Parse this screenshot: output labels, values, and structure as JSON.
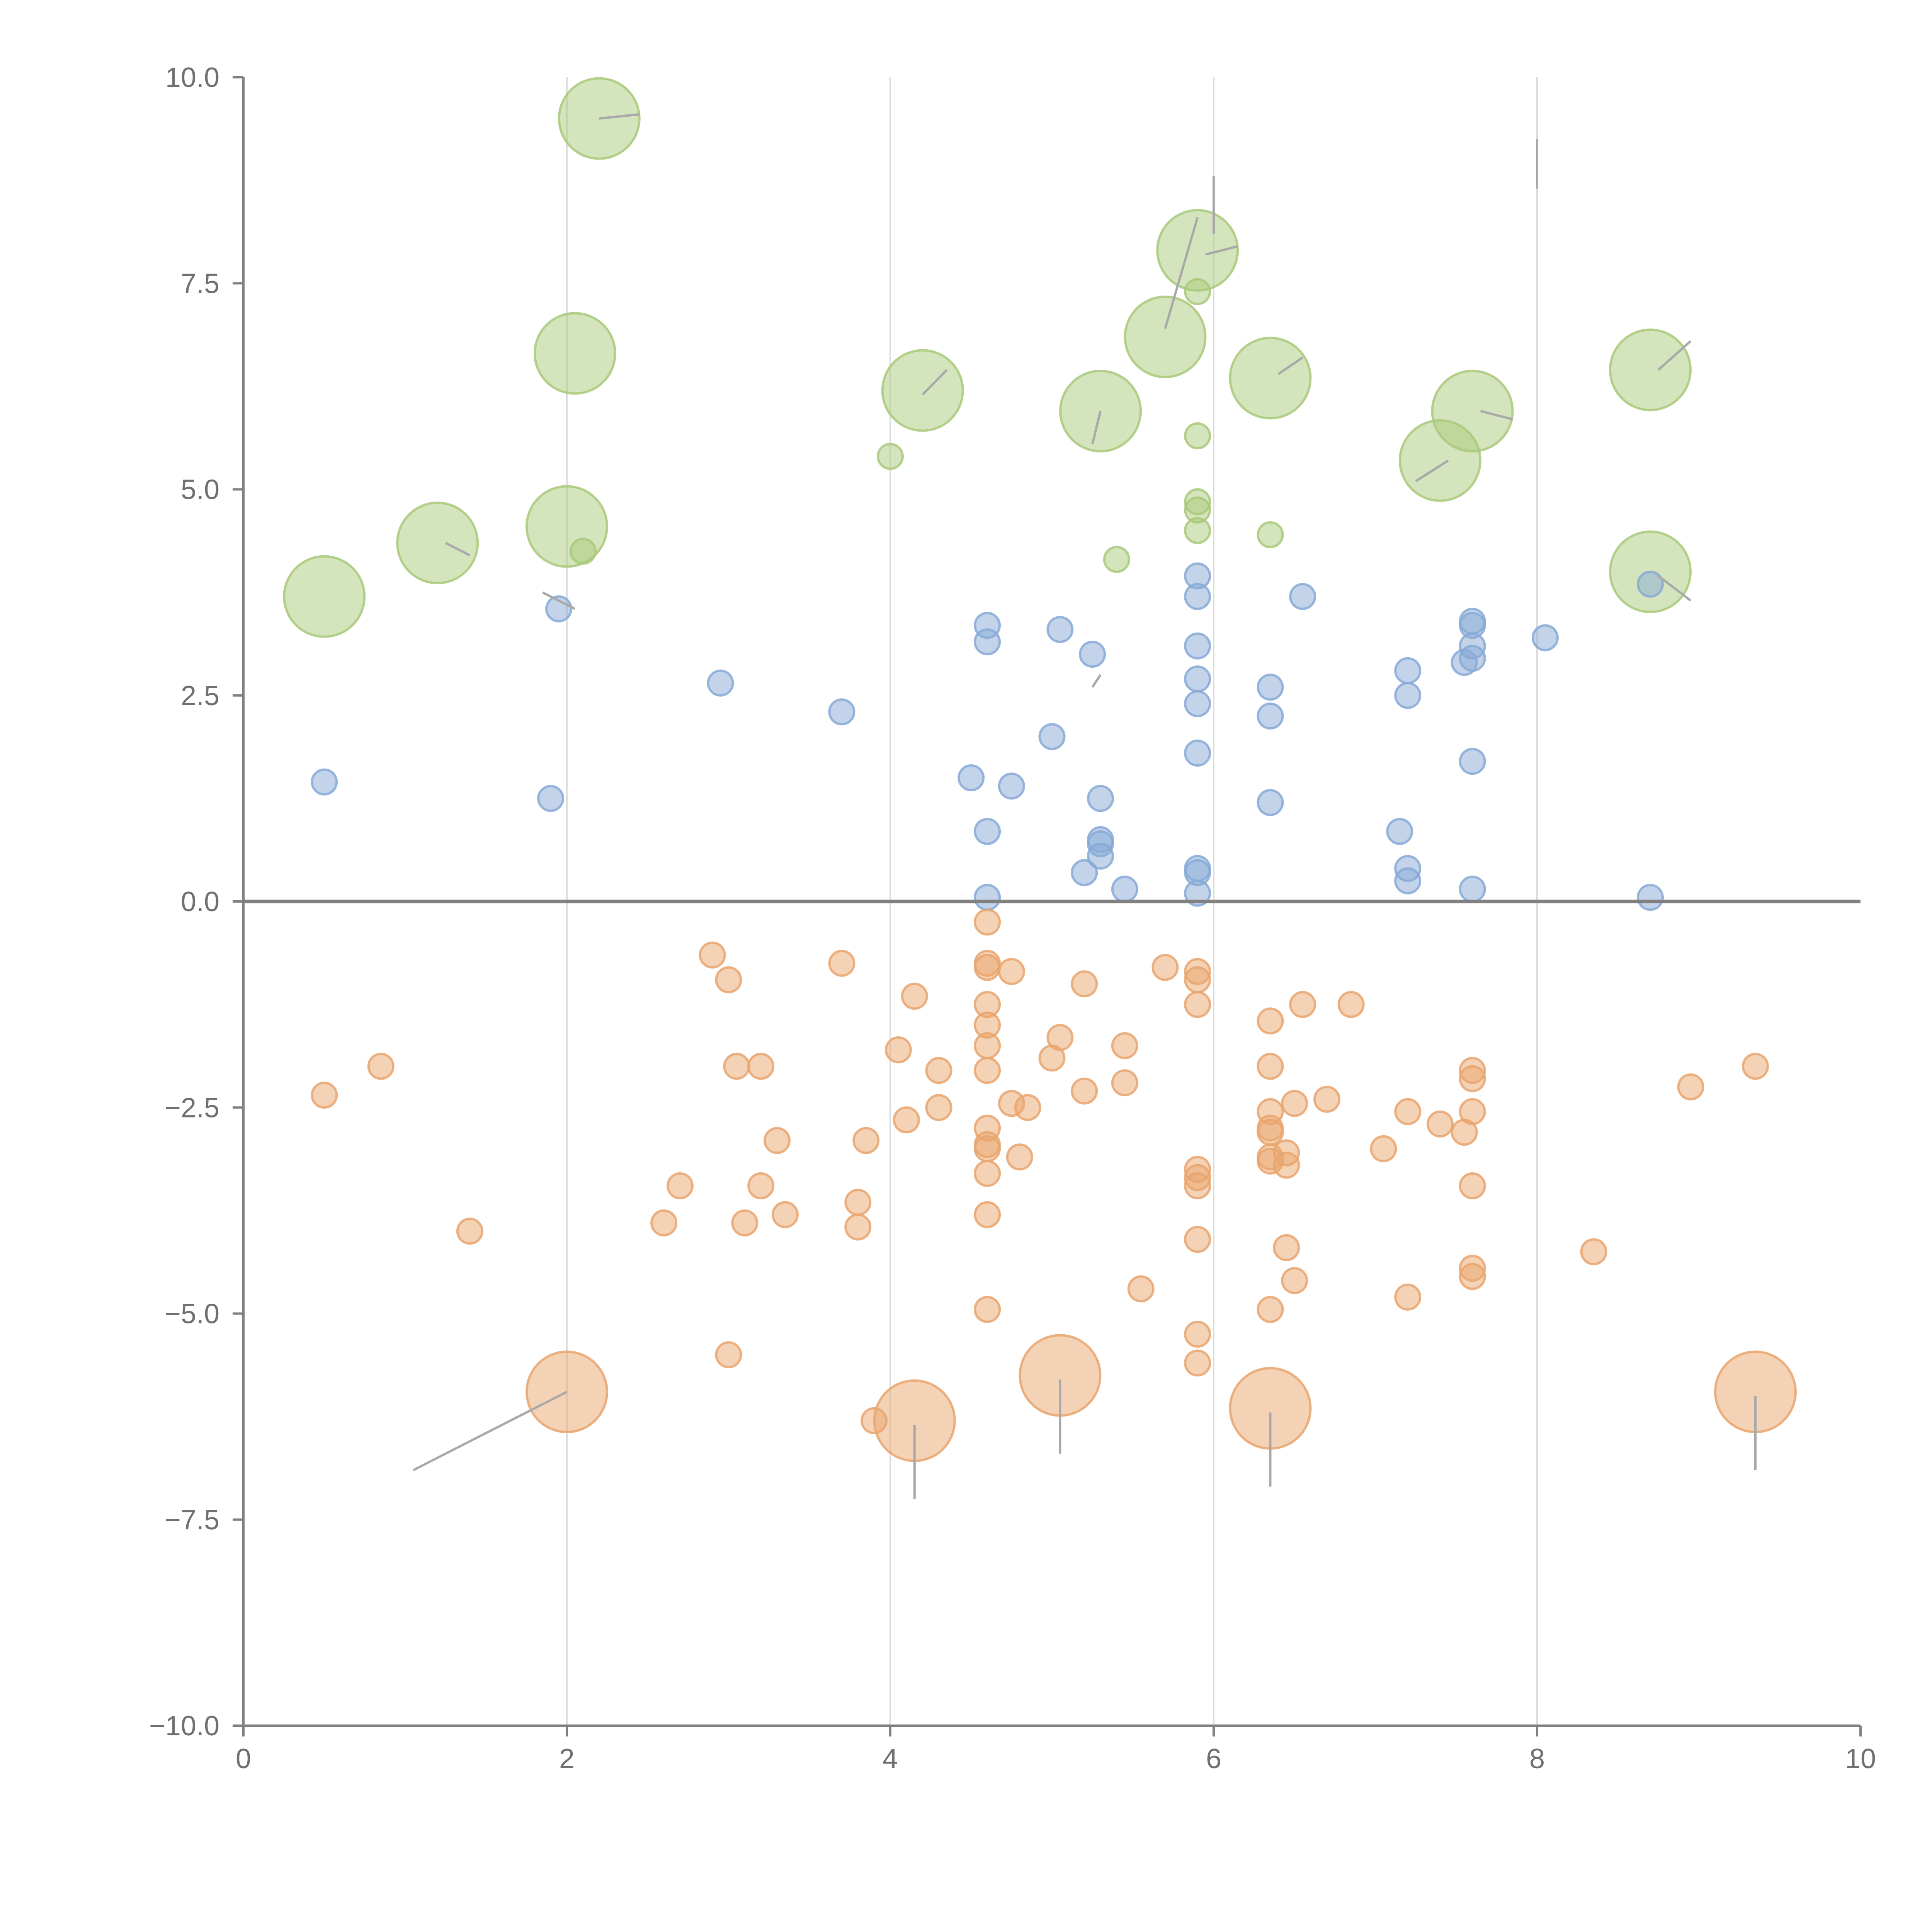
{
  "chart_data": {
    "type": "scatter",
    "title": "",
    "xlabel": "",
    "ylabel": "",
    "xlim": [
      0,
      10
    ],
    "ylim": [
      -10,
      10
    ],
    "x_ticks": [
      "0",
      "2",
      "4",
      "6",
      "8",
      "10"
    ],
    "y_ticks": [
      "−10.0",
      "−7.5",
      "−5.0",
      "−2.5",
      "0.0",
      "2.5",
      "5.0",
      "7.5",
      "10.0"
    ],
    "x_ticks_values": [
      0,
      2,
      4,
      6,
      8,
      10
    ],
    "y_ticks_values": [
      -10,
      -7.5,
      -5,
      -2.5,
      0,
      2.5,
      5,
      7.5,
      10
    ],
    "vertical_gridlines_at": [
      2,
      4,
      6,
      8
    ],
    "zero_line": true,
    "legend": "none",
    "series": [
      {
        "name": "green",
        "color": "#a9c97a",
        "points": [
          [
            2.2,
            9.5,
            3
          ],
          [
            2.05,
            6.65,
            3
          ],
          [
            1.2,
            4.35,
            3
          ],
          [
            2.0,
            4.55,
            3
          ],
          [
            0.5,
            3.7,
            3
          ],
          [
            2.1,
            4.25,
            1
          ],
          [
            4.0,
            5.4,
            1
          ],
          [
            4.2,
            6.2,
            3
          ],
          [
            5.3,
            5.95,
            3
          ],
          [
            5.7,
            6.85,
            3
          ],
          [
            5.9,
            7.9,
            3
          ],
          [
            5.9,
            7.4,
            1
          ],
          [
            5.9,
            5.65,
            1
          ],
          [
            5.9,
            4.85,
            1
          ],
          [
            5.9,
            4.75,
            1
          ],
          [
            5.9,
            4.5,
            1
          ],
          [
            5.4,
            4.15,
            1
          ],
          [
            6.35,
            6.35,
            3
          ],
          [
            6.35,
            4.45,
            1
          ],
          [
            7.4,
            5.35,
            3
          ],
          [
            7.6,
            5.95,
            3
          ],
          [
            8.7,
            6.45,
            3
          ],
          [
            8.7,
            4.0,
            3
          ]
        ]
      },
      {
        "name": "blue",
        "color": "#87a9d6",
        "points": [
          [
            0.5,
            1.45,
            1
          ],
          [
            1.9,
            1.25,
            1
          ],
          [
            1.95,
            3.55,
            1
          ],
          [
            2.95,
            2.65,
            1
          ],
          [
            3.7,
            2.3,
            1
          ],
          [
            4.5,
            1.5,
            1
          ],
          [
            4.6,
            3.35,
            1
          ],
          [
            4.6,
            3.15,
            1
          ],
          [
            4.6,
            0.85,
            1
          ],
          [
            4.6,
            0.05,
            1
          ],
          [
            4.75,
            1.4,
            1
          ],
          [
            5.0,
            2.0,
            1
          ],
          [
            5.05,
            3.3,
            1
          ],
          [
            5.25,
            3.0,
            1
          ],
          [
            5.3,
            1.25,
            1
          ],
          [
            5.3,
            0.75,
            1
          ],
          [
            5.3,
            0.7,
            1
          ],
          [
            5.3,
            0.55,
            1
          ],
          [
            5.2,
            0.35,
            1
          ],
          [
            5.45,
            0.15,
            1
          ],
          [
            5.9,
            3.95,
            1
          ],
          [
            5.9,
            3.7,
            1
          ],
          [
            5.9,
            3.1,
            1
          ],
          [
            5.9,
            2.7,
            1
          ],
          [
            5.9,
            2.4,
            1
          ],
          [
            5.9,
            1.8,
            1
          ],
          [
            5.9,
            0.4,
            1
          ],
          [
            5.9,
            0.35,
            1
          ],
          [
            5.9,
            0.1,
            1
          ],
          [
            6.35,
            2.6,
            1
          ],
          [
            6.35,
            2.25,
            1
          ],
          [
            6.35,
            1.2,
            1
          ],
          [
            6.55,
            3.7,
            1
          ],
          [
            7.15,
            0.85,
            1
          ],
          [
            7.2,
            2.8,
            1
          ],
          [
            7.2,
            2.5,
            1
          ],
          [
            7.2,
            0.4,
            1
          ],
          [
            7.2,
            0.25,
            1
          ],
          [
            7.55,
            2.9,
            1
          ],
          [
            7.6,
            3.4,
            1
          ],
          [
            7.6,
            3.35,
            1
          ],
          [
            7.6,
            3.1,
            1
          ],
          [
            7.6,
            2.95,
            1
          ],
          [
            7.6,
            1.7,
            1
          ],
          [
            7.6,
            0.15,
            1
          ],
          [
            8.05,
            3.2,
            1
          ],
          [
            8.7,
            3.85,
            1
          ],
          [
            8.7,
            0.05,
            1
          ]
        ]
      },
      {
        "name": "orange",
        "color": "#e9a56d",
        "points": [
          [
            0.5,
            -2.35,
            1
          ],
          [
            0.85,
            -2.0,
            1
          ],
          [
            1.4,
            -4.0,
            1
          ],
          [
            2.6,
            -3.9,
            1
          ],
          [
            2.7,
            -3.45,
            1
          ],
          [
            2.9,
            -0.65,
            1
          ],
          [
            3.0,
            -0.95,
            1
          ],
          [
            3.05,
            -2.0,
            1
          ],
          [
            3.2,
            -2.0,
            1
          ],
          [
            3.2,
            -3.45,
            1
          ],
          [
            3.3,
            -2.9,
            1
          ],
          [
            3.1,
            -3.9,
            1
          ],
          [
            3.35,
            -3.8,
            1
          ],
          [
            3.0,
            -5.5,
            1
          ],
          [
            3.7,
            -0.75,
            1
          ],
          [
            3.8,
            -3.65,
            1
          ],
          [
            3.85,
            -2.9,
            1
          ],
          [
            3.8,
            -3.95,
            1
          ],
          [
            3.9,
            -6.3,
            1
          ],
          [
            4.05,
            -1.8,
            1
          ],
          [
            4.1,
            -2.65,
            1
          ],
          [
            4.15,
            -1.15,
            1
          ],
          [
            4.3,
            -2.05,
            1
          ],
          [
            4.3,
            -2.5,
            1
          ],
          [
            4.6,
            -0.25,
            1
          ],
          [
            4.6,
            -0.75,
            1
          ],
          [
            4.6,
            -0.8,
            1
          ],
          [
            4.6,
            -1.25,
            1
          ],
          [
            4.6,
            -1.5,
            1
          ],
          [
            4.6,
            -1.75,
            1
          ],
          [
            4.6,
            -2.05,
            1
          ],
          [
            4.6,
            -2.75,
            1
          ],
          [
            4.6,
            -2.95,
            1
          ],
          [
            4.6,
            -3.0,
            1
          ],
          [
            4.6,
            -3.3,
            1
          ],
          [
            4.6,
            -3.8,
            1
          ],
          [
            4.6,
            -4.95,
            1
          ],
          [
            4.75,
            -0.85,
            1
          ],
          [
            4.75,
            -2.45,
            1
          ],
          [
            4.85,
            -2.5,
            1
          ],
          [
            4.8,
            -3.1,
            1
          ],
          [
            5.0,
            -1.9,
            1
          ],
          [
            5.05,
            -1.65,
            1
          ],
          [
            5.2,
            -1.0,
            1
          ],
          [
            5.2,
            -2.3,
            1
          ],
          [
            5.45,
            -1.75,
            1
          ],
          [
            5.45,
            -2.2,
            1
          ],
          [
            5.55,
            -4.7,
            1
          ],
          [
            5.7,
            -0.8,
            1
          ],
          [
            5.9,
            -0.85,
            1
          ],
          [
            5.9,
            -0.95,
            1
          ],
          [
            5.9,
            -1.25,
            1
          ],
          [
            5.9,
            -3.25,
            1
          ],
          [
            5.9,
            -3.35,
            1
          ],
          [
            5.9,
            -3.45,
            1
          ],
          [
            5.9,
            -4.1,
            1
          ],
          [
            5.9,
            -5.25,
            1
          ],
          [
            5.9,
            -5.6,
            1
          ],
          [
            6.35,
            -1.45,
            1
          ],
          [
            6.35,
            -2.0,
            1
          ],
          [
            6.35,
            -2.55,
            1
          ],
          [
            6.35,
            -2.75,
            1
          ],
          [
            6.35,
            -2.8,
            1
          ],
          [
            6.35,
            -3.1,
            1
          ],
          [
            6.35,
            -3.15,
            1
          ],
          [
            6.35,
            -4.95,
            1
          ],
          [
            6.45,
            -3.05,
            1
          ],
          [
            6.45,
            -3.2,
            1
          ],
          [
            6.45,
            -4.2,
            1
          ],
          [
            6.5,
            -2.45,
            1
          ],
          [
            6.5,
            -4.6,
            1
          ],
          [
            6.55,
            -1.25,
            1
          ],
          [
            6.7,
            -2.4,
            1
          ],
          [
            6.85,
            -1.25,
            1
          ],
          [
            7.05,
            -3.0,
            1
          ],
          [
            7.2,
            -2.55,
            1
          ],
          [
            7.2,
            -4.8,
            1
          ],
          [
            7.4,
            -2.7,
            1
          ],
          [
            7.55,
            -2.8,
            1
          ],
          [
            7.6,
            -2.05,
            1
          ],
          [
            7.6,
            -2.15,
            1
          ],
          [
            7.6,
            -2.55,
            1
          ],
          [
            7.6,
            -3.45,
            1
          ],
          [
            7.6,
            -4.45,
            1
          ],
          [
            7.6,
            -4.55,
            1
          ],
          [
            8.35,
            -4.25,
            1
          ],
          [
            8.95,
            -2.25,
            1
          ],
          [
            9.35,
            -2.0,
            1
          ],
          [
            2.0,
            -5.95,
            3
          ],
          [
            4.15,
            -6.3,
            3
          ],
          [
            5.05,
            -5.75,
            3
          ],
          [
            6.35,
            -6.15,
            3
          ],
          [
            9.35,
            -5.95,
            3
          ]
        ]
      }
    ],
    "leader_lines": [
      {
        "color": "#a9a9a9",
        "from": [
          2.0,
          -5.95
        ],
        "to": [
          1.05,
          -6.9
        ]
      },
      {
        "color": "#a9a9a9",
        "from": [
          4.15,
          -6.35
        ],
        "to": [
          4.15,
          -7.25
        ]
      },
      {
        "color": "#a9a9a9",
        "from": [
          5.05,
          -5.8
        ],
        "to": [
          5.05,
          -6.7
        ]
      },
      {
        "color": "#a9a9a9",
        "from": [
          6.35,
          -6.2
        ],
        "to": [
          6.35,
          -7.1
        ]
      },
      {
        "color": "#a9a9a9",
        "from": [
          9.35,
          -6.0
        ],
        "to": [
          9.35,
          -6.9
        ]
      },
      {
        "color": "#ffffff",
        "from": [
          2.2,
          9.5
        ],
        "to": [
          2.45,
          9.55
        ]
      },
      {
        "color": "#ffffff",
        "from": [
          4.2,
          6.15
        ],
        "to": [
          4.35,
          6.45
        ]
      },
      {
        "color": "#ffffff",
        "from": [
          5.25,
          5.55
        ],
        "to": [
          5.3,
          5.95
        ]
      },
      {
        "color": "#ffffff",
        "from": [
          5.7,
          6.95
        ],
        "to": [
          5.9,
          8.3
        ]
      },
      {
        "color": "#ffffff",
        "from": [
          5.95,
          7.85
        ],
        "to": [
          6.15,
          7.95
        ]
      },
      {
        "color": "#ffffff",
        "from": [
          6.4,
          6.4
        ],
        "to": [
          6.55,
          6.6
        ]
      },
      {
        "color": "#ffffff",
        "from": [
          7.45,
          5.35
        ],
        "to": [
          7.25,
          5.1
        ]
      },
      {
        "color": "#ffffff",
        "from": [
          7.65,
          5.95
        ],
        "to": [
          7.85,
          5.85
        ]
      },
      {
        "color": "#ffffff",
        "from": [
          8.75,
          6.45
        ],
        "to": [
          8.95,
          6.8
        ]
      },
      {
        "color": "#ffffff",
        "from": [
          8.75,
          3.95
        ],
        "to": [
          8.95,
          3.65
        ]
      },
      {
        "color": "#ffffff",
        "from": [
          1.25,
          4.35
        ],
        "to": [
          1.4,
          4.2
        ]
      },
      {
        "color": "#ffffff",
        "from": [
          1.85,
          3.75
        ],
        "to": [
          2.05,
          3.55
        ]
      },
      {
        "color": "#ffffff",
        "from": [
          5.3,
          2.75
        ],
        "to": [
          5.25,
          2.6
        ]
      },
      {
        "color": "#ffffff",
        "from": [
          6.0,
          8.8
        ],
        "to": [
          6.0,
          8.1
        ]
      },
      {
        "color": "#ffffff",
        "from": [
          8.0,
          9.25
        ],
        "to": [
          8.0,
          8.65
        ]
      }
    ]
  }
}
